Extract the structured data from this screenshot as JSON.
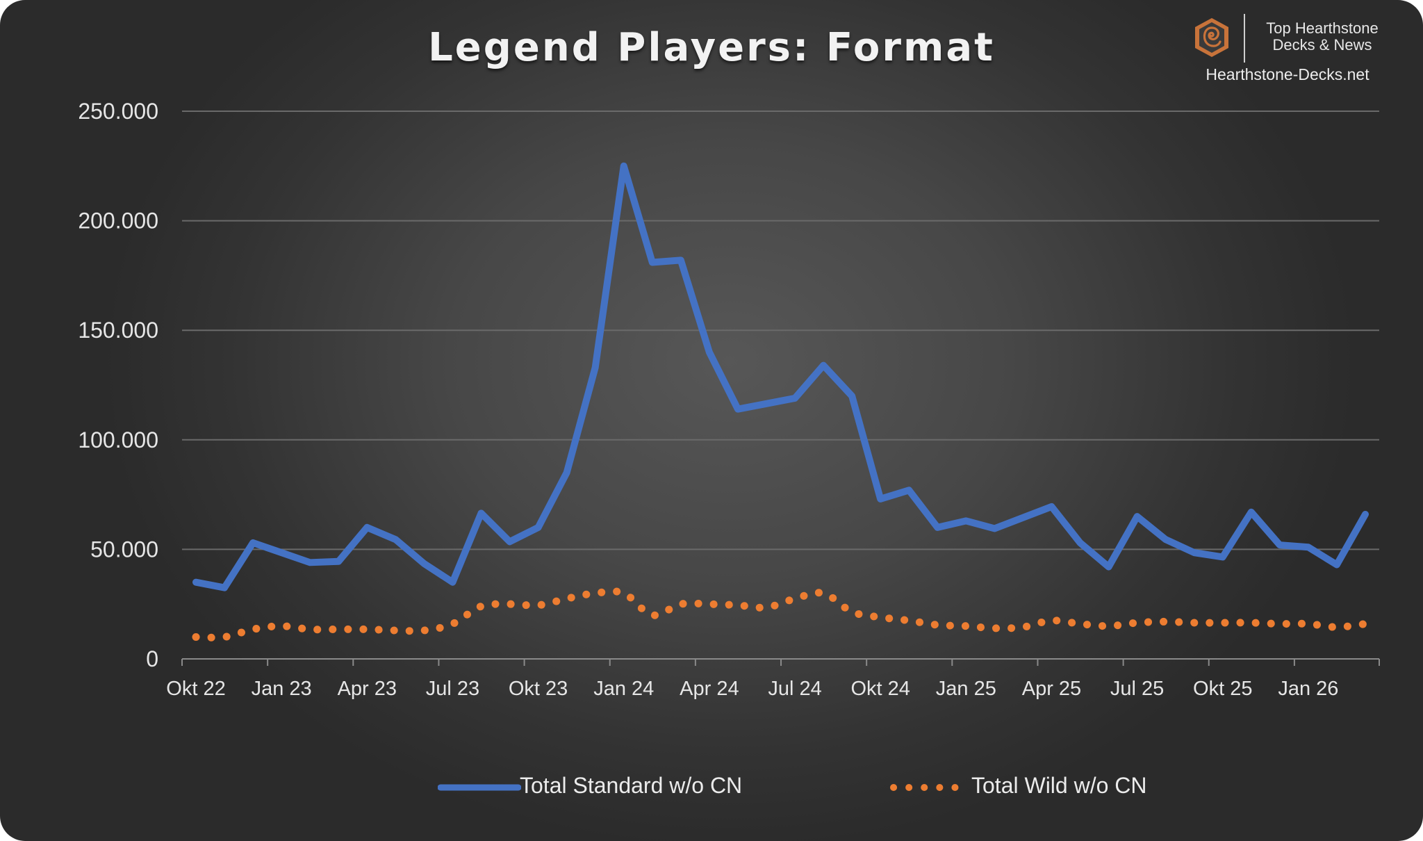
{
  "title": "Legend Players: Format",
  "brand": {
    "line1": "Top Hearthstone",
    "line2": "Decks & News",
    "url": "Hearthstone-Decks.net",
    "logo_icon": "hearthstone-logo-icon",
    "logo_color": "#c8733a"
  },
  "colors": {
    "standard": "#4472c4",
    "wild": "#ed7d31",
    "grid": "#6a6a6a",
    "text": "#e6e6e6"
  },
  "legend": {
    "standard_label": "Total Standard w/o CN",
    "wild_label": "Total Wild w/o CN"
  },
  "chart_data": {
    "type": "line",
    "title": "Legend Players: Format",
    "xlabel": "",
    "ylabel": "",
    "ylim": [
      0,
      250000
    ],
    "y_ticks": [
      0,
      50000,
      100000,
      150000,
      200000,
      250000
    ],
    "y_tick_labels": [
      "0",
      "50.000",
      "100.000",
      "150.000",
      "200.000",
      "250.000"
    ],
    "x_tick_labels": [
      "Okt 22",
      "Jan 23",
      "Apr 23",
      "Jul 23",
      "Okt 23",
      "Jan 24",
      "Apr 24",
      "Jul 24",
      "Okt 24",
      "Jan 25",
      "Apr 25",
      "Jul 25",
      "Okt 25",
      "Jan 26"
    ],
    "x_tick_every": 3,
    "grid": true,
    "legend_position": "bottom",
    "categories": [
      "Okt 22",
      "Nov 22",
      "Dez 22",
      "Jan 23",
      "Feb 23",
      "Mär 23",
      "Apr 23",
      "Mai 23",
      "Jun 23",
      "Jul 23",
      "Aug 23",
      "Sep 23",
      "Okt 23",
      "Nov 23",
      "Dez 23",
      "Jan 24",
      "Feb 24",
      "Mär 24",
      "Apr 24",
      "Mai 24",
      "Jun 24",
      "Jul 24",
      "Aug 24",
      "Sep 24",
      "Okt 24",
      "Nov 24",
      "Dez 24",
      "Jan 25",
      "Feb 25",
      "Mär 25",
      "Apr 25",
      "Mai 25",
      "Jun 25",
      "Jul 25",
      "Aug 25",
      "Sep 25",
      "Okt 25",
      "Nov 25",
      "Dez 25",
      "Jan 26",
      "Feb 26",
      "Mär 26"
    ],
    "series": [
      {
        "name": "Total Standard w/o CN",
        "style": "solid",
        "values": [
          35000,
          32500,
          53000,
          48500,
          44000,
          44500,
          60000,
          54500,
          43500,
          35000,
          66500,
          53500,
          60000,
          85000,
          133000,
          225000,
          181000,
          182000,
          140000,
          114000,
          116500,
          119000,
          134000,
          120000,
          73000,
          77000,
          60000,
          63000,
          59500,
          64500,
          69500,
          53000,
          42000,
          65000,
          54500,
          48500,
          46500,
          67000,
          52000,
          51000,
          43000,
          66000
        ]
      },
      {
        "name": "Total Wild w/o CN",
        "style": "dotted",
        "values": [
          10000,
          10000,
          13500,
          15000,
          13500,
          13500,
          13500,
          13000,
          13000,
          16000,
          24000,
          25000,
          24500,
          27500,
          30000,
          30000,
          20000,
          25000,
          25000,
          24500,
          23500,
          27500,
          30000,
          21500,
          19000,
          17500,
          15500,
          15000,
          14000,
          14500,
          17500,
          16000,
          15000,
          16500,
          17000,
          16500,
          16500,
          16500,
          16000,
          16000,
          14500,
          16000
        ]
      }
    ]
  }
}
